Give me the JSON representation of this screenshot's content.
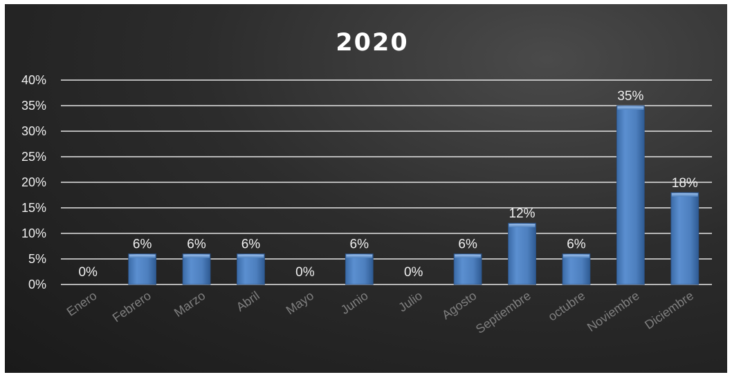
{
  "chart_data": {
    "type": "bar",
    "title": "2020",
    "categories": [
      "Enero",
      "Febrero",
      "Marzo",
      "Abril",
      "Mayo",
      "Junio",
      "Julio",
      "Agosto",
      "Septiembre",
      "octubre",
      "Noviembre",
      "Diciembre"
    ],
    "values": [
      0,
      6,
      6,
      6,
      0,
      6,
      0,
      6,
      12,
      6,
      35,
      18
    ],
    "data_labels": [
      "0%",
      "6%",
      "6%",
      "6%",
      "0%",
      "6%",
      "0%",
      "6%",
      "12%",
      "6%",
      "35%",
      "18%"
    ],
    "y_ticks": [
      "0%",
      "5%",
      "10%",
      "15%",
      "20%",
      "25%",
      "30%",
      "35%",
      "40%"
    ],
    "ylim": [
      0,
      40
    ],
    "grid": true,
    "legend": "none",
    "bar_color": "#4f81bd",
    "background_color": "#2a2a2a"
  }
}
